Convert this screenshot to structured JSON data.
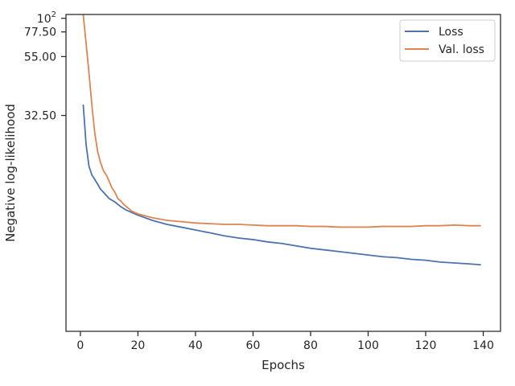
{
  "chart_data": {
    "type": "line",
    "title": "",
    "xlabel": "Epochs",
    "ylabel": "Negative log-likelihood",
    "xlim": [
      -5,
      146
    ],
    "ylim": [
      13,
      109
    ],
    "x_ticks": [
      0,
      20,
      40,
      60,
      80,
      100,
      120,
      140
    ],
    "x_tick_labels": [
      "0",
      "20",
      "40",
      "60",
      "80",
      "100",
      "120",
      "140"
    ],
    "y_ticks": [
      100,
      77.5,
      55,
      32.5
    ],
    "y_tick_labels": [
      "10^2",
      "77.50",
      "55.00",
      "32.50"
    ],
    "grid": false,
    "legend": {
      "position": "top-right"
    },
    "series": [
      {
        "name": "Loss",
        "color": "#4c72b0",
        "x": [
          1,
          2,
          3,
          4,
          5,
          6,
          7,
          8,
          9,
          10,
          12,
          14,
          16,
          18,
          20,
          25,
          30,
          35,
          40,
          45,
          50,
          55,
          60,
          65,
          70,
          75,
          80,
          85,
          90,
          95,
          100,
          105,
          110,
          115,
          120,
          125,
          130,
          135,
          139
        ],
        "y": [
          35,
          27,
          24,
          23,
          22.5,
          22,
          21.5,
          21.2,
          20.9,
          20.6,
          20.3,
          19.9,
          19.6,
          19.4,
          19.2,
          18.8,
          18.5,
          18.3,
          18.1,
          17.9,
          17.7,
          17.55,
          17.45,
          17.3,
          17.2,
          17.05,
          16.9,
          16.8,
          16.7,
          16.6,
          16.5,
          16.4,
          16.35,
          16.25,
          16.2,
          16.1,
          16.05,
          16.0,
          15.95
        ]
      },
      {
        "name": "Val. loss",
        "color": "#dd8452",
        "x": [
          1,
          2,
          3,
          4,
          5,
          6,
          7,
          8,
          9,
          10,
          11,
          12,
          13,
          14,
          15,
          16,
          18,
          20,
          25,
          30,
          35,
          40,
          45,
          50,
          55,
          60,
          65,
          70,
          75,
          80,
          85,
          90,
          95,
          100,
          105,
          110,
          115,
          120,
          125,
          130,
          135,
          139
        ],
        "y": [
          108,
          65,
          46,
          35,
          29,
          26,
          24.5,
          23.5,
          23,
          22.3,
          21.6,
          21.2,
          20.6,
          20.4,
          20.1,
          19.9,
          19.5,
          19.3,
          19.0,
          18.8,
          18.7,
          18.6,
          18.55,
          18.5,
          18.5,
          18.45,
          18.4,
          18.4,
          18.4,
          18.35,
          18.35,
          18.3,
          18.3,
          18.3,
          18.35,
          18.35,
          18.35,
          18.4,
          18.4,
          18.45,
          18.4,
          18.4
        ]
      }
    ]
  }
}
